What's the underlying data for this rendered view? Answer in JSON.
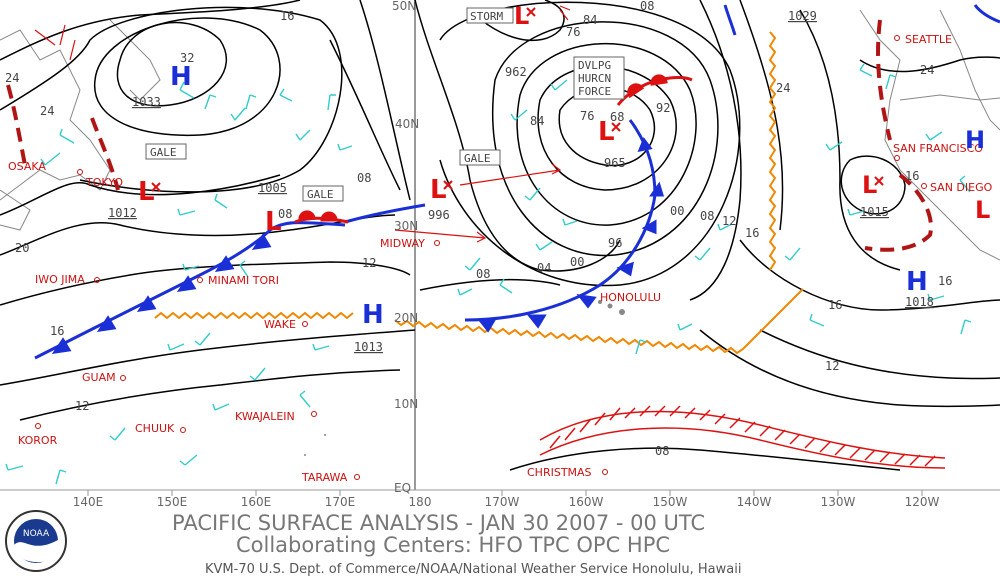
{
  "footer": {
    "title": "PACIFIC SURFACE ANALYSIS - JAN 30 2007 - 00 UTC",
    "centers": "Collaborating Centers:  HFO TPC OPC HPC",
    "office": "KVM-70 U.S. Dept. of Commerce/NOAA/National Weather Service Honolulu, Hawaii",
    "logo_text": "NOAA"
  },
  "axes": {
    "lon_labels": [
      "140E",
      "150E",
      "160E",
      "170E",
      "180",
      "170W",
      "160W",
      "150W",
      "140W",
      "130W",
      "120W"
    ],
    "lat_labels": [
      "50N",
      "40N",
      "30N",
      "20N",
      "10N",
      "EQ"
    ]
  },
  "cities": [
    {
      "name": "OSAKA"
    },
    {
      "name": "TOKYO"
    },
    {
      "name": "IWO JIMA"
    },
    {
      "name": "MINAMI TORI"
    },
    {
      "name": "WAKE"
    },
    {
      "name": "GUAM"
    },
    {
      "name": "KOROR"
    },
    {
      "name": "CHUUK"
    },
    {
      "name": "KWAJALEIN"
    },
    {
      "name": "TARAWA"
    },
    {
      "name": "MIDWAY"
    },
    {
      "name": "HONOLULU"
    },
    {
      "name": "CHRISTMAS"
    },
    {
      "name": "SEATTLE"
    },
    {
      "name": "SAN FRANCISCO"
    },
    {
      "name": "SAN DIEGO"
    }
  ],
  "pressure_centers": [
    {
      "type": "H",
      "value": "1033",
      "sub": "32"
    },
    {
      "type": "L",
      "value": "1012"
    },
    {
      "type": "L",
      "value": "1005"
    },
    {
      "type": "H",
      "value": "1013"
    },
    {
      "type": "L",
      "value": "996"
    },
    {
      "type": "L",
      "value": "965",
      "sub": "68"
    },
    {
      "type": "L",
      "value": "962",
      "label": "STORM"
    },
    {
      "type": "H",
      "value": "1029"
    },
    {
      "type": "L",
      "value": "1015"
    },
    {
      "type": "H",
      "value": "1018"
    }
  ],
  "warnings": {
    "gale": "GALE",
    "storm": "STORM",
    "dvlpg": [
      "DVLPG",
      "HURCN",
      "FORCE"
    ]
  },
  "isobar_labels": [
    "16",
    "24",
    "24",
    "20",
    "16",
    "12",
    "08",
    "12",
    "08",
    "00",
    "04",
    "08",
    "84",
    "76",
    "92",
    "96",
    "00",
    "08",
    "12",
    "16",
    "24",
    "16",
    "12",
    "08",
    "84",
    "76",
    "16",
    "24",
    "16",
    "08"
  ],
  "colors": {
    "cold_front": "#1a2fd6",
    "warm_front": "#dd1111",
    "trough": "#b01515",
    "itcz": "#ee8800",
    "wind_barb": "#33cccc",
    "grid": "#999999"
  }
}
